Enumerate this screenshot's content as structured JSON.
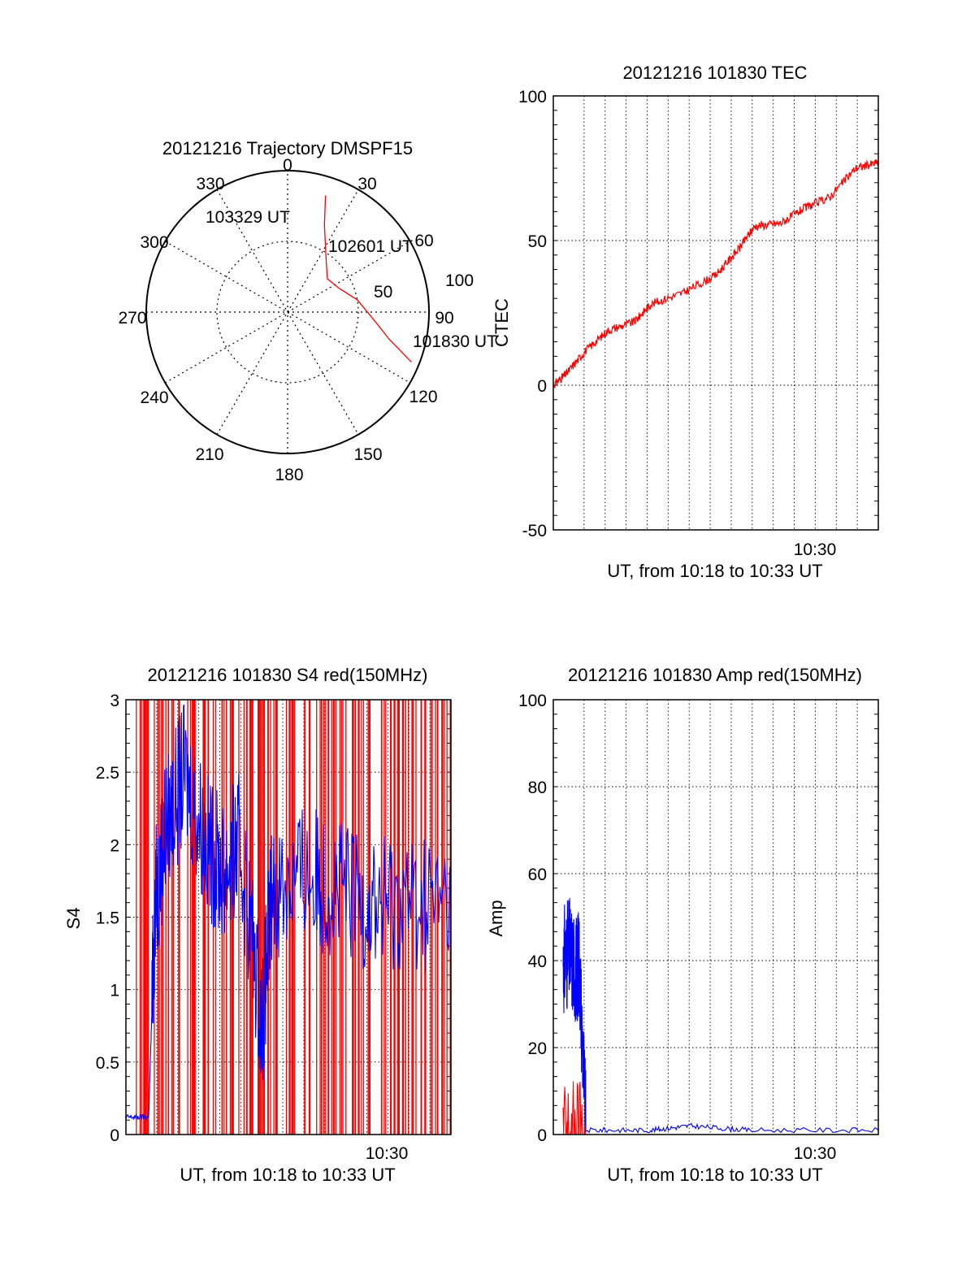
{
  "colors": {
    "red": "#ff0000",
    "blue": "#0000ff",
    "grid": "#000000"
  },
  "chart_data": [
    {
      "type": "polar",
      "title": "20121216 Trajectory DMSPF15",
      "azimuth_labels": [
        "0",
        "30",
        "60",
        "90",
        "120",
        "150",
        "180",
        "210",
        "240",
        "270",
        "300",
        "330"
      ],
      "radial_labels": [
        "50",
        "100"
      ],
      "track": {
        "start_label": "101830 UT",
        "mid_label": "102601 UT",
        "end_label": "103329 UT",
        "points": [
          [
            112,
            85
          ],
          [
            105,
            67
          ],
          [
            95,
            55
          ],
          [
            80,
            45
          ],
          [
            65,
            36
          ],
          [
            50,
            33
          ],
          [
            38,
            40
          ],
          [
            23,
            60
          ],
          [
            18,
            78
          ]
        ]
      }
    },
    {
      "type": "line",
      "title": "20121216 101830 TEC",
      "ylabel": "CTEC",
      "xlabel": "UT, from 10:18 to 10:33 UT",
      "xticklabel": "10:30",
      "ylim": [
        -50,
        100
      ],
      "yticks": [
        "-50",
        "0",
        "50",
        "100"
      ],
      "grid": true,
      "series": [
        {
          "color": "red",
          "x": [
            0.0,
            0.04,
            0.1,
            0.17,
            0.25,
            0.3,
            0.4,
            0.5,
            0.57,
            0.62,
            0.7,
            0.77,
            0.85,
            0.93,
            1.0
          ],
          "y": [
            0,
            4,
            12,
            19,
            22,
            28,
            32,
            38,
            47,
            55,
            56,
            61,
            65,
            75,
            77
          ]
        }
      ]
    },
    {
      "type": "line",
      "title": "20121216 101830 S4 red(150MHz)",
      "ylabel": "S4",
      "xlabel": "UT, from 10:18 to 10:33 UT",
      "xticklabel": "10:30",
      "ylim": [
        0,
        3
      ],
      "yticks": [
        "0",
        "0.5",
        "1",
        "1.5",
        "2",
        "2.5",
        "3"
      ],
      "grid": true,
      "series": [
        {
          "color": "red",
          "x": [
            0.0,
            0.1,
            0.3,
            0.5,
            0.7,
            0.9,
            1.0
          ],
          "y": [
            3,
            3,
            3,
            3,
            3,
            3,
            3
          ]
        },
        {
          "color": "blue",
          "x": [
            0.0,
            0.07,
            0.09,
            0.12,
            0.18,
            0.25,
            0.3,
            0.35,
            0.42,
            0.45,
            0.55,
            0.65,
            0.75,
            0.85,
            1.0
          ],
          "y": [
            0.12,
            0.12,
            1.6,
            2.1,
            2.5,
            2.0,
            1.8,
            2.0,
            0.8,
            1.7,
            1.8,
            1.7,
            1.6,
            1.6,
            1.6
          ]
        }
      ]
    },
    {
      "type": "line",
      "title": "20121216 101830 Amp red(150MHz)",
      "ylabel": "Amp",
      "xlabel": "UT, from 10:18 to 10:33 UT",
      "xticklabel": "10:30",
      "ylim": [
        0,
        100
      ],
      "yticks": [
        "0",
        "20",
        "40",
        "60",
        "80",
        "100"
      ],
      "grid": true,
      "series": [
        {
          "color": "blue",
          "x": [
            0.03,
            0.05,
            0.07,
            0.08,
            0.1,
            0.3,
            0.42,
            0.6,
            1.0
          ],
          "y": [
            40,
            42,
            38,
            40,
            1,
            1,
            2,
            1,
            1
          ]
        },
        {
          "color": "red",
          "x": [
            0.03,
            0.1
          ],
          "y": [
            0.3,
            0.3
          ]
        }
      ]
    }
  ]
}
